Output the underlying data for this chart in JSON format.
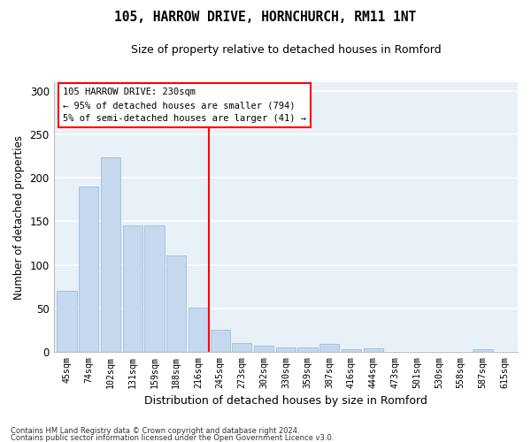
{
  "title": "105, HARROW DRIVE, HORNCHURCH, RM11 1NT",
  "subtitle": "Size of property relative to detached houses in Romford",
  "xlabel": "Distribution of detached houses by size in Romford",
  "ylabel": "Number of detached properties",
  "bar_color": "#c5d8ed",
  "bar_edge_color": "#a8c4df",
  "background_color": "#e8f0f8",
  "grid_color": "white",
  "categories": [
    "45sqm",
    "74sqm",
    "102sqm",
    "131sqm",
    "159sqm",
    "188sqm",
    "216sqm",
    "245sqm",
    "273sqm",
    "302sqm",
    "330sqm",
    "359sqm",
    "387sqm",
    "416sqm",
    "444sqm",
    "473sqm",
    "501sqm",
    "530sqm",
    "558sqm",
    "587sqm",
    "615sqm"
  ],
  "values": [
    70,
    190,
    224,
    145,
    145,
    111,
    51,
    25,
    10,
    7,
    5,
    5,
    9,
    3,
    4,
    0,
    0,
    0,
    0,
    3,
    0
  ],
  "ylim": [
    0,
    310
  ],
  "yticks": [
    0,
    50,
    100,
    150,
    200,
    250,
    300
  ],
  "marker_bar_index": 7,
  "marker_label": "105 HARROW DRIVE: 230sqm",
  "annotation_line1": "← 95% of detached houses are smaller (794)",
  "annotation_line2": "5% of semi-detached houses are larger (41) →",
  "footer_line1": "Contains HM Land Registry data © Crown copyright and database right 2024.",
  "footer_line2": "Contains public sector information licensed under the Open Government Licence v3.0."
}
